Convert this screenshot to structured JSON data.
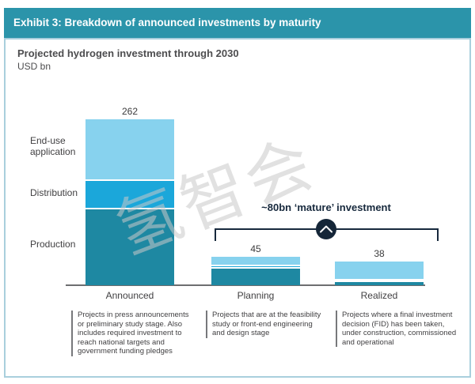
{
  "exhibit": {
    "header": "Exhibit 3: Breakdown of announced investments by maturity",
    "title": "Projected hydrogen investment through 2030",
    "unit": "USD bn"
  },
  "watermark": "氢智会",
  "annotation": {
    "label": "~80bn ‘mature’ investment",
    "icon": "chevron-up-icon"
  },
  "left_labels": [
    "End-use application",
    "Distribution",
    "Production"
  ],
  "chart_data": {
    "type": "bar",
    "stacked": true,
    "title": "Projected hydrogen investment through 2030",
    "ylabel": "USD bn",
    "ylim": [
      0,
      262
    ],
    "grid": false,
    "legend_position": "left-of-first-bar-segment-labels",
    "categories": [
      "Announced",
      "Planning",
      "Realized"
    ],
    "totals": [
      262,
      45,
      38
    ],
    "series": [
      {
        "name": "Production",
        "color": "#1E88A2",
        "values": [
          120,
          26,
          5
        ]
      },
      {
        "name": "Distribution",
        "color": "#1BA7DA",
        "values": [
          44,
          4,
          3
        ]
      },
      {
        "name": "End-use application",
        "color": "#87D2EE",
        "values": [
          98,
          15,
          30
        ]
      }
    ],
    "annotation": "~80bn 'mature' investment (bracket spanning Planning and Realized bars)"
  },
  "footnotes": [
    "Projects in press announcements or preliminary study stage. Also includes required investment to reach national targets and government funding pledges",
    "Projects that are at the feasibility study or front-end engineering and design stage",
    "Projects where a final investment decision (FID) has been taken, under construction, commissioned and operational"
  ],
  "colors": {
    "header_bg": "#2B94AA",
    "box_border": "#A9CFDD",
    "annotation": "#17293D",
    "axis": "#6D6E70"
  }
}
